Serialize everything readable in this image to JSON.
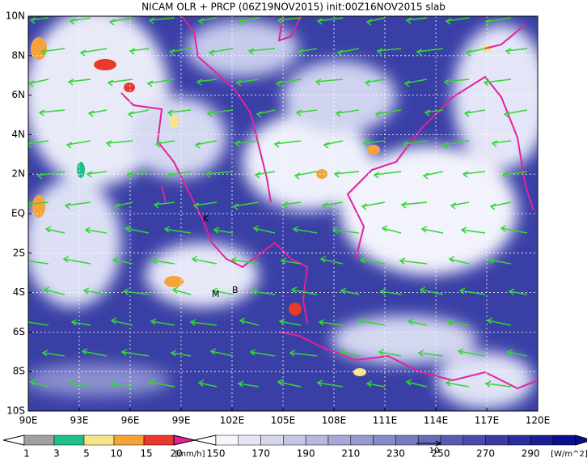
{
  "title": "NICAM OLR + PRCP (06Z19NOV2015) init:00Z16NOV2015 slab",
  "axes": {
    "y_labels": [
      "10N",
      "8N",
      "6N",
      "4N",
      "2N",
      "EQ",
      "2S",
      "4S",
      "6S",
      "8S",
      "10S"
    ],
    "x_labels": [
      "90E",
      "93E",
      "96E",
      "99E",
      "102E",
      "105E",
      "108E",
      "111E",
      "114E",
      "117E",
      "120E"
    ]
  },
  "markers": [
    "K",
    "M",
    "B"
  ],
  "legend_precip": {
    "labels": [
      "1",
      "3",
      "5",
      "10",
      "15",
      "20"
    ],
    "unit": "[mm/h]"
  },
  "legend_olr": {
    "labels": [
      "150",
      "170",
      "190",
      "210",
      "230",
      "250",
      "270",
      "290"
    ],
    "unit": "[W/m^2]"
  },
  "vector_reference": "10"
}
